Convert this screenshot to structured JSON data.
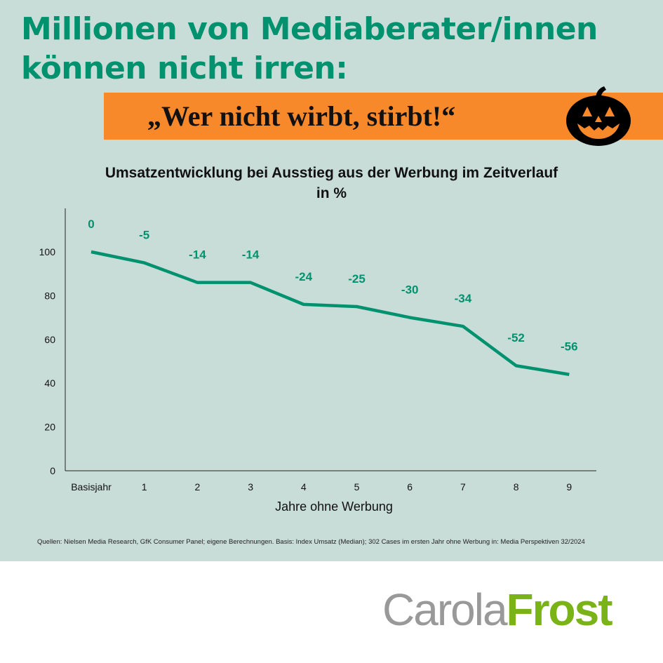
{
  "header": {
    "title_line1": "Millionen von Mediaberater/innen",
    "title_line2": "können nicht irren:",
    "slogan": "„Wer nicht wirbt, stirbt!“"
  },
  "colors": {
    "accent": "#00916e",
    "banner": "#f7892b",
    "background": "#c9ddd8",
    "logo_green": "#7ab317"
  },
  "chart_data": {
    "type": "line",
    "title": "Umsatzentwicklung bei Ausstieg aus der Werbung im Zeitverlauf",
    "subtitle": "in %",
    "xlabel": "Jahre ohne Werbung",
    "ylabel": "",
    "categories": [
      "Basisjahr",
      "1",
      "2",
      "3",
      "4",
      "5",
      "6",
      "7",
      "8",
      "9"
    ],
    "values": [
      100,
      95,
      86,
      86,
      76,
      75,
      70,
      66,
      48,
      44
    ],
    "data_labels": [
      "0",
      "-5",
      "-14",
      "-14",
      "-24",
      "-25",
      "-30",
      "-34",
      "-52",
      "-56"
    ],
    "yticks": [
      "0",
      "20",
      "40",
      "60",
      "80",
      "100"
    ],
    "ylim": [
      0,
      120
    ],
    "grid": false
  },
  "source": "Quellen: Nielsen Media Research, GfK Consumer Panel; eigene Berechnungen. Basis: Index Umsatz (Median); 302 Cases im ersten Jahr ohne Werbung in: Media Perspektiven 32/2024",
  "logo": {
    "part1": "Carola",
    "part2": "Frost"
  }
}
